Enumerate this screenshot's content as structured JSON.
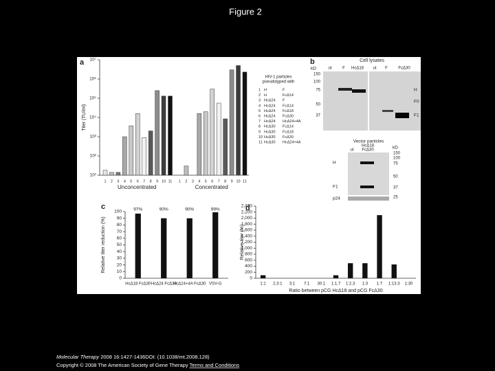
{
  "header": {
    "title": "Figure 2"
  },
  "chart_data": [
    {
      "type": "bar",
      "panel": "a",
      "y_label": "Titer (TU/ml)",
      "log_scale": true,
      "ylim": [
        10,
        10000000
      ],
      "yticks": [
        {
          "value": 10,
          "label": "10¹"
        },
        {
          "value": 100,
          "label": "10²"
        },
        {
          "value": 1000,
          "label": "10³"
        },
        {
          "value": 10000,
          "label": "10⁴"
        },
        {
          "value": 100000,
          "label": "10⁵"
        },
        {
          "value": 1000000,
          "label": "10⁶"
        },
        {
          "value": 10000000,
          "label": "10⁷"
        }
      ],
      "categories": [
        "1",
        "2",
        "3",
        "4",
        "5",
        "6",
        "7",
        "8",
        "9",
        "10",
        "11"
      ],
      "colors": [
        "#e6e6e6",
        "#bdbdbd",
        "#7a7a7a",
        "#a8a8a8",
        "#c8c8c8",
        "#d2d2d2",
        "#f2f2f2",
        "#5a5a5a",
        "#8c8c8c",
        "#3c3c3c",
        "#111111"
      ],
      "groups": [
        {
          "name": "Unconcentrated",
          "values": [
            18,
            14,
            14,
            1000,
            3700,
            16000,
            900,
            2000,
            250000,
            130000,
            130000
          ]
        },
        {
          "name": "Concentrated",
          "values": [
            null,
            30,
            null,
            16000,
            20000,
            300000,
            56000,
            8500,
            3000000,
            5000000,
            2300000
          ]
        }
      ],
      "legend_title": [
        "HIV-1 particles",
        "pseudotyped with"
      ],
      "legend_rows": [
        [
          "1",
          "H",
          "F"
        ],
        [
          "2",
          "H",
          "FcΔ14"
        ],
        [
          "3",
          "HcΔ24",
          "F"
        ],
        [
          "4",
          "HcΔ24",
          "FcΔ14"
        ],
        [
          "5",
          "HcΔ24",
          "FcΔ18"
        ],
        [
          "6",
          "HcΔ24",
          "FcΔ30"
        ],
        [
          "7",
          "HcΔ24",
          "HcΔ24+4A"
        ],
        [
          "8",
          "HcΔ30",
          "FcΔ14"
        ],
        [
          "9",
          "HcΔ30",
          "FcΔ18"
        ],
        [
          "10",
          "HcΔ30",
          "FcΔ30"
        ],
        [
          "11",
          "HcΔ30",
          "HcΔ24+4A"
        ]
      ]
    },
    {
      "type": "bar",
      "panel": "c",
      "y_label": "Relative titer reduction (%)",
      "ylim": [
        0,
        100
      ],
      "yticks": [
        0,
        10,
        20,
        30,
        40,
        50,
        60,
        70,
        80,
        90,
        100
      ],
      "categories": [
        "HcΔ18 FcΔ30",
        "HcΔ24 FcΔ30",
        "HcΔ24+4A FcΔ30",
        "VSV-G"
      ],
      "values": [
        97,
        90,
        90,
        99
      ],
      "value_labels": [
        "97%",
        "90%",
        "90%",
        "99%"
      ],
      "color": "#111111"
    },
    {
      "type": "bar",
      "panel": "d",
      "y_label": "Relative titer (%)",
      "x_label": "Ratio between pCG HcΔ18 and pCG FcΔ30",
      "ylim": [
        0,
        2400
      ],
      "yticks": [
        0,
        200,
        400,
        600,
        800,
        {
          "value": 1000,
          "label": "1,000"
        },
        {
          "value": 1200,
          "label": "1,200"
        },
        {
          "value": 1400,
          "label": "1,400"
        },
        {
          "value": 1600,
          "label": "1,600"
        },
        {
          "value": 1800,
          "label": "1,800"
        },
        {
          "value": 2000,
          "label": "2,000"
        },
        {
          "value": 2200,
          "label": "2,200"
        },
        {
          "value": 2400,
          "label": "2,400"
        }
      ],
      "categories": [
        "1:1",
        "2.3:1",
        "3:1",
        "7:1",
        "30:1",
        "1:1.7",
        "1:2.3",
        "1:3",
        "1:7",
        "1:13.3",
        "1:30"
      ],
      "values": [
        100,
        0,
        0,
        0,
        0,
        100,
        500,
        500,
        2100,
        460,
        0
      ],
      "color": "#111111"
    }
  ],
  "blot": {
    "panel": "b",
    "top_title": "Cell lysates",
    "kd_label": "kD",
    "top_markers": [
      "150",
      "100",
      "75",
      "50",
      "37"
    ],
    "top_lanes": [
      "ut",
      "F",
      "HcΔ18",
      "ut",
      "F",
      "FcΔ30"
    ],
    "top_bands": [
      "H",
      "F0",
      "F1"
    ],
    "bottom_title": "Vector particles",
    "bottom_group": [
      "HcΔ18",
      "FcΔ30"
    ],
    "bottom_lanes": [
      "ut"
    ],
    "bottom_markers": [
      "150",
      "100",
      "75",
      "50",
      "37",
      "25"
    ],
    "bottom_bands": [
      "H",
      "F1",
      "p24"
    ]
  },
  "footer": {
    "journal": "Molecular Therapy",
    "citation": " 2008 16:1427-1436DOI: (10.1038/mt.2008.128)",
    "copyright": "Copyright © 2008 The American Society of Gene Therapy ",
    "link": "Terms and Conditions"
  }
}
